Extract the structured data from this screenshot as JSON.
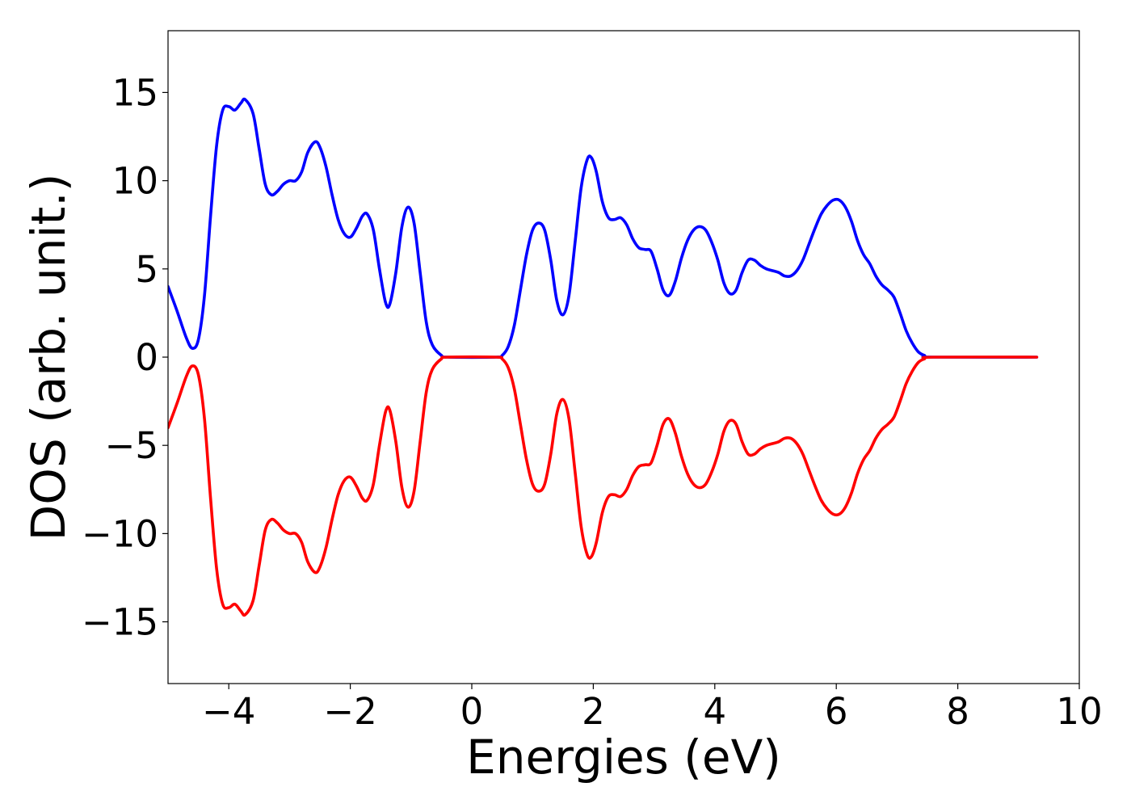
{
  "chart_data": {
    "type": "line",
    "title": "",
    "xlabel": "Energies (eV)",
    "ylabel": "DOS (arb. unit.)",
    "xlim": [
      -5,
      10
    ],
    "ylim": [
      -18.5,
      18.5
    ],
    "xticks": [
      -4,
      -2,
      0,
      2,
      4,
      6,
      8,
      10
    ],
    "xtick_labels": [
      "−4",
      "−2",
      "0",
      "2",
      "4",
      "6",
      "8",
      "10"
    ],
    "yticks": [
      15,
      10,
      5,
      0,
      -5,
      -10,
      -15
    ],
    "ytick_labels": [
      "15",
      "10",
      "5",
      "0",
      "−5",
      "−10",
      "−15"
    ],
    "grid": false,
    "legend": "none",
    "series": [
      {
        "color": "#0000ff",
        "points": [
          [
            -5.0,
            4.0
          ],
          [
            -4.85,
            2.6
          ],
          [
            -4.7,
            1.1
          ],
          [
            -4.6,
            0.5
          ],
          [
            -4.5,
            1.0
          ],
          [
            -4.4,
            3.5
          ],
          [
            -4.3,
            8.0
          ],
          [
            -4.2,
            12.0
          ],
          [
            -4.1,
            14.0
          ],
          [
            -4.0,
            14.2
          ],
          [
            -3.9,
            14.0
          ],
          [
            -3.8,
            14.4
          ],
          [
            -3.73,
            14.6
          ],
          [
            -3.6,
            13.8
          ],
          [
            -3.5,
            11.8
          ],
          [
            -3.4,
            9.8
          ],
          [
            -3.3,
            9.2
          ],
          [
            -3.2,
            9.4
          ],
          [
            -3.1,
            9.8
          ],
          [
            -3.0,
            10.0
          ],
          [
            -2.9,
            10.0
          ],
          [
            -2.8,
            10.5
          ],
          [
            -2.7,
            11.6
          ],
          [
            -2.58,
            12.2
          ],
          [
            -2.5,
            11.9
          ],
          [
            -2.4,
            10.8
          ],
          [
            -2.3,
            9.2
          ],
          [
            -2.2,
            7.8
          ],
          [
            -2.1,
            7.0
          ],
          [
            -2.0,
            6.8
          ],
          [
            -1.9,
            7.3
          ],
          [
            -1.8,
            8.0
          ],
          [
            -1.72,
            8.1
          ],
          [
            -1.62,
            7.2
          ],
          [
            -1.52,
            5.0
          ],
          [
            -1.42,
            3.1
          ],
          [
            -1.35,
            3.0
          ],
          [
            -1.25,
            4.8
          ],
          [
            -1.15,
            7.4
          ],
          [
            -1.05,
            8.5
          ],
          [
            -0.95,
            7.6
          ],
          [
            -0.85,
            4.8
          ],
          [
            -0.75,
            2.0
          ],
          [
            -0.65,
            0.7
          ],
          [
            -0.5,
            0.1
          ],
          [
            -0.4,
            0.0
          ],
          [
            0.4,
            0.0
          ],
          [
            0.5,
            0.1
          ],
          [
            0.6,
            0.6
          ],
          [
            0.7,
            1.8
          ],
          [
            0.8,
            3.8
          ],
          [
            0.9,
            5.8
          ],
          [
            1.0,
            7.2
          ],
          [
            1.1,
            7.6
          ],
          [
            1.2,
            7.2
          ],
          [
            1.3,
            5.5
          ],
          [
            1.4,
            3.2
          ],
          [
            1.5,
            2.4
          ],
          [
            1.6,
            3.5
          ],
          [
            1.7,
            6.5
          ],
          [
            1.8,
            9.6
          ],
          [
            1.9,
            11.2
          ],
          [
            1.97,
            11.3
          ],
          [
            2.05,
            10.5
          ],
          [
            2.15,
            8.8
          ],
          [
            2.25,
            7.9
          ],
          [
            2.35,
            7.8
          ],
          [
            2.45,
            7.9
          ],
          [
            2.55,
            7.5
          ],
          [
            2.65,
            6.7
          ],
          [
            2.75,
            6.2
          ],
          [
            2.85,
            6.1
          ],
          [
            2.95,
            6.0
          ],
          [
            3.05,
            5.0
          ],
          [
            3.15,
            3.8
          ],
          [
            3.25,
            3.5
          ],
          [
            3.35,
            4.3
          ],
          [
            3.45,
            5.6
          ],
          [
            3.55,
            6.6
          ],
          [
            3.65,
            7.2
          ],
          [
            3.75,
            7.4
          ],
          [
            3.85,
            7.2
          ],
          [
            3.95,
            6.5
          ],
          [
            4.05,
            5.5
          ],
          [
            4.15,
            4.2
          ],
          [
            4.25,
            3.6
          ],
          [
            4.35,
            3.8
          ],
          [
            4.45,
            4.8
          ],
          [
            4.55,
            5.5
          ],
          [
            4.65,
            5.5
          ],
          [
            4.75,
            5.2
          ],
          [
            4.85,
            5.0
          ],
          [
            4.95,
            4.9
          ],
          [
            5.05,
            4.8
          ],
          [
            5.15,
            4.6
          ],
          [
            5.25,
            4.6
          ],
          [
            5.35,
            4.9
          ],
          [
            5.45,
            5.5
          ],
          [
            5.55,
            6.4
          ],
          [
            5.65,
            7.3
          ],
          [
            5.75,
            8.1
          ],
          [
            5.85,
            8.6
          ],
          [
            5.95,
            8.9
          ],
          [
            6.05,
            8.9
          ],
          [
            6.15,
            8.5
          ],
          [
            6.25,
            7.7
          ],
          [
            6.35,
            6.6
          ],
          [
            6.45,
            5.8
          ],
          [
            6.55,
            5.3
          ],
          [
            6.65,
            4.6
          ],
          [
            6.75,
            4.1
          ],
          [
            6.85,
            3.8
          ],
          [
            6.95,
            3.4
          ],
          [
            7.05,
            2.5
          ],
          [
            7.15,
            1.5
          ],
          [
            7.25,
            0.8
          ],
          [
            7.35,
            0.3
          ],
          [
            7.45,
            0.1
          ],
          [
            7.6,
            0.0
          ],
          [
            9.3,
            0.0
          ]
        ]
      },
      {
        "color": "#ff0000",
        "points": [
          [
            -5.0,
            -4.0
          ],
          [
            -4.85,
            -2.6
          ],
          [
            -4.7,
            -1.1
          ],
          [
            -4.6,
            -0.5
          ],
          [
            -4.5,
            -1.0
          ],
          [
            -4.4,
            -3.5
          ],
          [
            -4.3,
            -8.0
          ],
          [
            -4.2,
            -12.0
          ],
          [
            -4.1,
            -14.0
          ],
          [
            -4.0,
            -14.2
          ],
          [
            -3.9,
            -14.0
          ],
          [
            -3.8,
            -14.4
          ],
          [
            -3.73,
            -14.6
          ],
          [
            -3.6,
            -13.8
          ],
          [
            -3.5,
            -11.8
          ],
          [
            -3.4,
            -9.8
          ],
          [
            -3.3,
            -9.2
          ],
          [
            -3.2,
            -9.4
          ],
          [
            -3.1,
            -9.8
          ],
          [
            -3.0,
            -10.0
          ],
          [
            -2.9,
            -10.0
          ],
          [
            -2.8,
            -10.5
          ],
          [
            -2.7,
            -11.6
          ],
          [
            -2.58,
            -12.2
          ],
          [
            -2.5,
            -11.9
          ],
          [
            -2.4,
            -10.8
          ],
          [
            -2.3,
            -9.2
          ],
          [
            -2.2,
            -7.8
          ],
          [
            -2.1,
            -7.0
          ],
          [
            -2.0,
            -6.8
          ],
          [
            -1.9,
            -7.3
          ],
          [
            -1.8,
            -8.0
          ],
          [
            -1.72,
            -8.1
          ],
          [
            -1.62,
            -7.2
          ],
          [
            -1.52,
            -5.0
          ],
          [
            -1.42,
            -3.1
          ],
          [
            -1.35,
            -3.0
          ],
          [
            -1.25,
            -4.8
          ],
          [
            -1.15,
            -7.4
          ],
          [
            -1.05,
            -8.5
          ],
          [
            -0.95,
            -7.6
          ],
          [
            -0.85,
            -4.8
          ],
          [
            -0.75,
            -2.0
          ],
          [
            -0.65,
            -0.7
          ],
          [
            -0.5,
            -0.1
          ],
          [
            -0.4,
            0.0
          ],
          [
            0.4,
            0.0
          ],
          [
            0.5,
            -0.1
          ],
          [
            0.6,
            -0.6
          ],
          [
            0.7,
            -1.8
          ],
          [
            0.8,
            -3.8
          ],
          [
            0.9,
            -5.8
          ],
          [
            1.0,
            -7.2
          ],
          [
            1.1,
            -7.6
          ],
          [
            1.2,
            -7.2
          ],
          [
            1.3,
            -5.5
          ],
          [
            1.4,
            -3.2
          ],
          [
            1.5,
            -2.4
          ],
          [
            1.6,
            -3.5
          ],
          [
            1.7,
            -6.5
          ],
          [
            1.8,
            -9.6
          ],
          [
            1.9,
            -11.2
          ],
          [
            1.97,
            -11.3
          ],
          [
            2.05,
            -10.5
          ],
          [
            2.15,
            -8.8
          ],
          [
            2.25,
            -7.9
          ],
          [
            2.35,
            -7.8
          ],
          [
            2.45,
            -7.9
          ],
          [
            2.55,
            -7.5
          ],
          [
            2.65,
            -6.7
          ],
          [
            2.75,
            -6.2
          ],
          [
            2.85,
            -6.1
          ],
          [
            2.95,
            -6.0
          ],
          [
            3.05,
            -5.0
          ],
          [
            3.15,
            -3.8
          ],
          [
            3.25,
            -3.5
          ],
          [
            3.35,
            -4.3
          ],
          [
            3.45,
            -5.6
          ],
          [
            3.55,
            -6.6
          ],
          [
            3.65,
            -7.2
          ],
          [
            3.75,
            -7.4
          ],
          [
            3.85,
            -7.2
          ],
          [
            3.95,
            -6.5
          ],
          [
            4.05,
            -5.5
          ],
          [
            4.15,
            -4.2
          ],
          [
            4.25,
            -3.6
          ],
          [
            4.35,
            -3.8
          ],
          [
            4.45,
            -4.8
          ],
          [
            4.55,
            -5.5
          ],
          [
            4.65,
            -5.5
          ],
          [
            4.75,
            -5.2
          ],
          [
            4.85,
            -5.0
          ],
          [
            4.95,
            -4.9
          ],
          [
            5.05,
            -4.8
          ],
          [
            5.15,
            -4.6
          ],
          [
            5.25,
            -4.6
          ],
          [
            5.35,
            -4.9
          ],
          [
            5.45,
            -5.5
          ],
          [
            5.55,
            -6.4
          ],
          [
            5.65,
            -7.3
          ],
          [
            5.75,
            -8.1
          ],
          [
            5.85,
            -8.6
          ],
          [
            5.95,
            -8.9
          ],
          [
            6.05,
            -8.9
          ],
          [
            6.15,
            -8.5
          ],
          [
            6.25,
            -7.7
          ],
          [
            6.35,
            -6.6
          ],
          [
            6.45,
            -5.8
          ],
          [
            6.55,
            -5.3
          ],
          [
            6.65,
            -4.6
          ],
          [
            6.75,
            -4.1
          ],
          [
            6.85,
            -3.8
          ],
          [
            6.95,
            -3.4
          ],
          [
            7.05,
            -2.5
          ],
          [
            7.15,
            -1.5
          ],
          [
            7.25,
            -0.8
          ],
          [
            7.35,
            -0.3
          ],
          [
            7.45,
            -0.1
          ],
          [
            7.6,
            0.0
          ],
          [
            9.3,
            0.0
          ]
        ]
      }
    ]
  }
}
